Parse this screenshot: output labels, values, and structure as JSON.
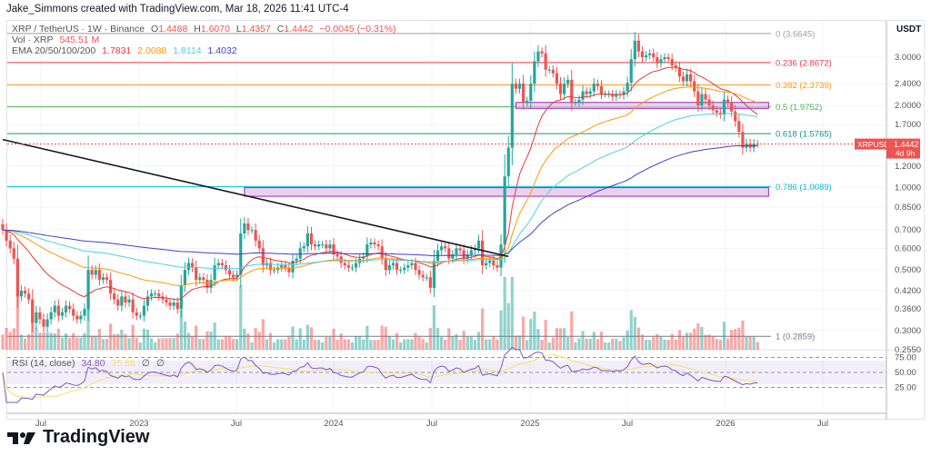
{
  "credit": "Jake_Simmons created with TradingView.com, Mar 18, 2026 11:41 UTC-4",
  "legend": {
    "symbol": "XRP / TetherUS · 1W · Binance",
    "o_label": "O",
    "o": "1.4488",
    "h_label": "H",
    "h": "1.6070",
    "l_label": "L",
    "l": "1.4357",
    "c_label": "C",
    "c": "1.4442",
    "change": "−0.0045 (−0.31%)",
    "vol_label": "Vol · XRP",
    "vol": "545.51 M",
    "ema_label": "EMA 20/50/100/200",
    "ema20": "1.7831",
    "ema50": "2.0088",
    "ema100": "1.8114",
    "ema200": "1.4032"
  },
  "rsi": {
    "label": "RSI (14, close)",
    "value": "34.80",
    "ma": "35.88",
    "n1": "∅",
    "n2": "∅"
  },
  "currency": "USDT",
  "symbol_badge": "XRPUSDT",
  "last_price": "1.4442",
  "countdown": "4d 9h",
  "logo": "TradingView",
  "colors": {
    "up": "#26a69a",
    "down": "#ef5350",
    "ema20": "#e53935",
    "ema50": "#ff9800",
    "ema100": "#4dd0e1",
    "ema200": "#3f3fc8",
    "rsi": "#7e57c2",
    "rsi_ma": "#f5e06b"
  },
  "chart_data": {
    "type": "candlestick",
    "interval": "1W",
    "first_week": "2022-04-11",
    "y_scale": "log",
    "ylim": [
      0.255,
      4.2
    ],
    "y_ticks": [
      "3.0000",
      "2.4000",
      "2.0000",
      "1.7000",
      "1.2000",
      "1.0000",
      "0.8500",
      "0.7000",
      "0.6000",
      "0.5000",
      "0.4200",
      "0.3600",
      "0.3000",
      "0.2550"
    ],
    "x_ticks": [
      "Jul",
      "2023",
      "Jul",
      "2024",
      "Jul",
      "2025",
      "Jul",
      "2026",
      "Jul"
    ],
    "rsi_ticks": [
      "75.00",
      "50.00",
      "25.00"
    ],
    "closes": [
      0.7,
      0.64,
      0.6,
      0.55,
      0.4,
      0.42,
      0.41,
      0.39,
      0.32,
      0.35,
      0.33,
      0.31,
      0.33,
      0.35,
      0.37,
      0.34,
      0.35,
      0.37,
      0.36,
      0.34,
      0.33,
      0.34,
      0.36,
      0.5,
      0.48,
      0.5,
      0.46,
      0.47,
      0.46,
      0.41,
      0.39,
      0.37,
      0.4,
      0.38,
      0.39,
      0.35,
      0.34,
      0.34,
      0.37,
      0.4,
      0.41,
      0.41,
      0.4,
      0.39,
      0.38,
      0.37,
      0.38,
      0.36,
      0.44,
      0.5,
      0.53,
      0.51,
      0.46,
      0.47,
      0.46,
      0.43,
      0.46,
      0.52,
      0.53,
      0.52,
      0.5,
      0.48,
      0.47,
      0.48,
      0.68,
      0.74,
      0.7,
      0.7,
      0.64,
      0.6,
      0.52,
      0.53,
      0.5,
      0.5,
      0.51,
      0.52,
      0.51,
      0.49,
      0.54,
      0.55,
      0.6,
      0.61,
      0.68,
      0.62,
      0.61,
      0.62,
      0.62,
      0.6,
      0.62,
      0.57,
      0.56,
      0.53,
      0.52,
      0.51,
      0.51,
      0.53,
      0.55,
      0.56,
      0.62,
      0.63,
      0.62,
      0.61,
      0.55,
      0.5,
      0.52,
      0.53,
      0.5,
      0.5,
      0.51,
      0.52,
      0.53,
      0.5,
      0.48,
      0.47,
      0.47,
      0.43,
      0.54,
      0.59,
      0.61,
      0.6,
      0.55,
      0.57,
      0.6,
      0.59,
      0.55,
      0.57,
      0.59,
      0.6,
      0.64,
      0.52,
      0.53,
      0.54,
      0.52,
      0.51,
      0.62,
      1.1,
      1.4,
      2.4,
      2.3,
      2.4,
      2.05,
      2.08,
      2.4,
      2.9,
      3.15,
      3.1,
      2.7,
      2.7,
      2.62,
      2.4,
      2.2,
      2.4,
      2.48,
      2.05,
      2.05,
      2.1,
      2.25,
      2.2,
      2.25,
      2.4,
      2.35,
      2.2,
      2.2,
      2.2,
      2.15,
      2.2,
      2.18,
      2.25,
      2.42,
      2.95,
      3.45,
      3.15,
      3.0,
      3.05,
      3.1,
      3.0,
      2.85,
      2.95,
      3.0,
      2.95,
      2.8,
      2.75,
      2.55,
      2.45,
      2.6,
      2.45,
      2.25,
      2.0,
      2.2,
      2.1,
      2.0,
      1.92,
      1.88,
      1.85,
      2.1,
      2.05,
      1.9,
      1.75,
      1.6,
      1.4,
      1.45,
      1.4,
      1.4488,
      1.4442
    ],
    "fib_levels": [
      {
        "ratio": "0",
        "price": 3.6645,
        "label": "0 (3.6645)",
        "color": "#9e9e9e"
      },
      {
        "ratio": "0.236",
        "price": 2.8672,
        "label": "0.236 (2.8672)",
        "color": "#f23645"
      },
      {
        "ratio": "0.382",
        "price": 2.3739,
        "label": "0.382 (2.3739)",
        "color": "#ff9800"
      },
      {
        "ratio": "0.5",
        "price": 1.9752,
        "label": "0.5 (1.9752)",
        "color": "#4caf50"
      },
      {
        "ratio": "0.618",
        "price": 1.5765,
        "label": "0.618 (1.5765)",
        "color": "#089981"
      },
      {
        "ratio": "0.786",
        "price": 1.0089,
        "label": "0.786 (1.0089)",
        "color": "#00bcd4"
      },
      {
        "ratio": "1",
        "price": 0.2859,
        "label": "1 (0.2859)",
        "color": "#787b86"
      }
    ],
    "zones": [
      {
        "from": "2023-07-10",
        "to": "2026-03-09",
        "low": 0.93,
        "high": 1.0
      },
      {
        "from": "2024-12-02",
        "to": "2026-03-09",
        "low": 1.95,
        "high": 2.05
      }
    ],
    "trendline": {
      "from": {
        "date": "2022-04-11",
        "price": 1.5
      },
      "to": {
        "date": "2024-11-18",
        "price": 0.56
      }
    }
  }
}
